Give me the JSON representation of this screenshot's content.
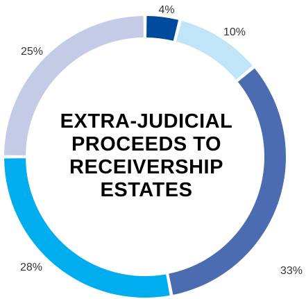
{
  "chart_data": {
    "type": "pie",
    "title": [
      "EXTRA-JUDICIAL",
      "PROCEEDS TO",
      "RECEIVERSHIP",
      "ESTATES"
    ],
    "values": [
      4,
      10,
      33,
      28,
      25
    ],
    "value_labels": [
      "4%",
      "10%",
      "33%",
      "28%",
      "25%"
    ],
    "colors": [
      "#004b9d",
      "#c0e5f8",
      "#4b6cb1",
      "#00adee",
      "#c4cbe7"
    ],
    "donut": true
  }
}
